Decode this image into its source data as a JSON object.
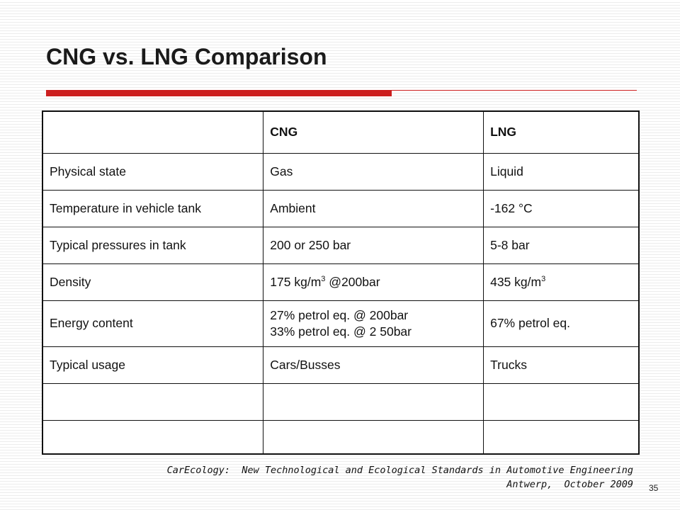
{
  "slide": {
    "title": "CNG vs. LNG Comparison",
    "accent_color": "#cc1f1f",
    "page_number": "35"
  },
  "table": {
    "header": [
      "",
      "CNG",
      "LNG"
    ],
    "rows": [
      {
        "label": "Physical state",
        "cng": "Gas",
        "lng": "Liquid"
      },
      {
        "label": "Temperature in vehicle tank",
        "cng": "Ambient",
        "lng": "-162 °C"
      },
      {
        "label": "Typical pressures in tank",
        "cng": "200 or 250 bar",
        "lng": "5-8 bar"
      },
      {
        "label": "Density",
        "cng_pre": "175 kg/m",
        "cng_sup": "3",
        "cng_post": " @200bar",
        "lng_pre": "435 kg/m",
        "lng_sup": "3"
      },
      {
        "label": "Energy content",
        "cng_line1": "27% petrol eq. @ 200bar",
        "cng_line2": "33% petrol eq. @ 2 50bar",
        "lng": "67% petrol eq."
      },
      {
        "label": "Typical usage",
        "cng": "Cars/Busses",
        "lng": "Trucks"
      }
    ]
  },
  "footer": {
    "line1": "CarEcology:  New Technological and Ecological Standards in Automotive Engineering",
    "line2": "Antwerp,  October 2009"
  }
}
